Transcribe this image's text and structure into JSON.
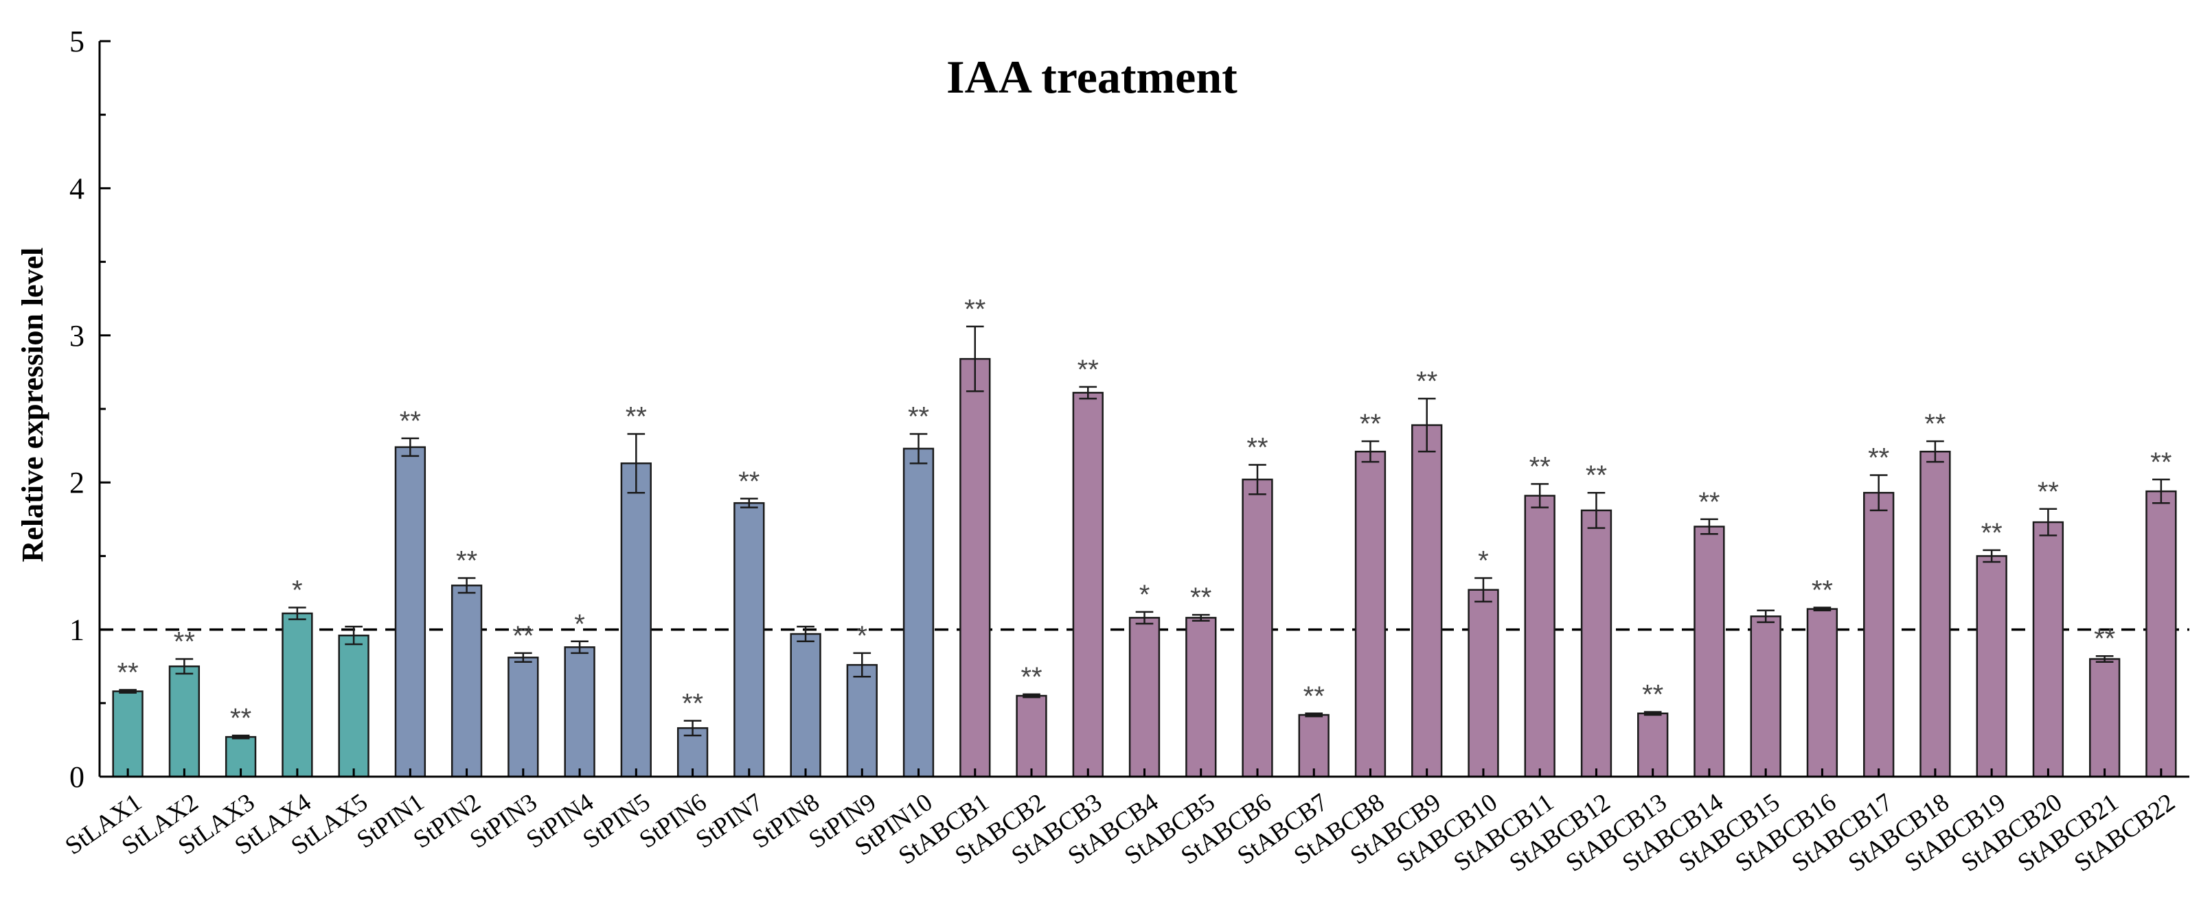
{
  "chart_data": {
    "type": "bar",
    "title": "IAA treatment",
    "xlabel": "",
    "ylabel": "Relative expression level",
    "ylim": [
      0,
      5
    ],
    "yticks": [
      "0",
      "1",
      "2",
      "3",
      "4",
      "5"
    ],
    "reference_line": 1,
    "categories": [
      "StLAX1",
      "StLAX2",
      "StLAX3",
      "StLAX4",
      "StLAX5",
      "StPIN1",
      "StPIN2",
      "StPIN3",
      "StPIN4",
      "StPIN5",
      "StPIN6",
      "StPIN7",
      "StPIN8",
      "StPIN9",
      "StPIN10",
      "StABCB1",
      "StABCB2",
      "StABCB3",
      "StABCB4",
      "StABCB5",
      "StABCB6",
      "StABCB7",
      "StABCB8",
      "StABCB9",
      "StABCB10",
      "StABCB11",
      "StABCB12",
      "StABCB13",
      "StABCB14",
      "StABCB15",
      "StABCB16",
      "StABCB17",
      "StABCB18",
      "StABCB19",
      "StABCB20",
      "StABCB21",
      "StABCB22"
    ],
    "values": [
      0.58,
      0.75,
      0.27,
      1.11,
      0.96,
      2.24,
      1.3,
      0.81,
      0.88,
      2.13,
      0.33,
      1.86,
      0.97,
      0.76,
      2.23,
      2.84,
      0.55,
      2.61,
      1.08,
      1.08,
      2.02,
      0.42,
      2.21,
      2.39,
      1.27,
      1.91,
      1.81,
      0.43,
      1.7,
      1.09,
      1.14,
      1.93,
      2.21,
      1.5,
      1.73,
      0.8,
      1.94
    ],
    "errors": [
      0.01,
      0.05,
      0.01,
      0.04,
      0.06,
      0.06,
      0.05,
      0.03,
      0.04,
      0.2,
      0.05,
      0.03,
      0.05,
      0.08,
      0.1,
      0.22,
      0.01,
      0.04,
      0.04,
      0.02,
      0.1,
      0.01,
      0.07,
      0.18,
      0.08,
      0.08,
      0.12,
      0.01,
      0.05,
      0.04,
      0.01,
      0.12,
      0.07,
      0.04,
      0.09,
      0.02,
      0.08
    ],
    "significance": [
      "**",
      "**",
      "**",
      "*",
      "",
      "**",
      "**",
      "**",
      "*",
      "**",
      "**",
      "**",
      "",
      "*",
      "**",
      "**",
      "**",
      "**",
      "*",
      "**",
      "**",
      "**",
      "**",
      "**",
      "*",
      "**",
      "**",
      "**",
      "**",
      "",
      "**",
      "**",
      "**",
      "**",
      "**",
      "**",
      "**"
    ],
    "groups": [
      {
        "name": "StLAX",
        "color": "#5aabaa",
        "count": 5
      },
      {
        "name": "StPIN",
        "color": "#7f93b5",
        "count": 10
      },
      {
        "name": "StABCB",
        "color": "#a87fa1",
        "count": 22
      }
    ]
  }
}
